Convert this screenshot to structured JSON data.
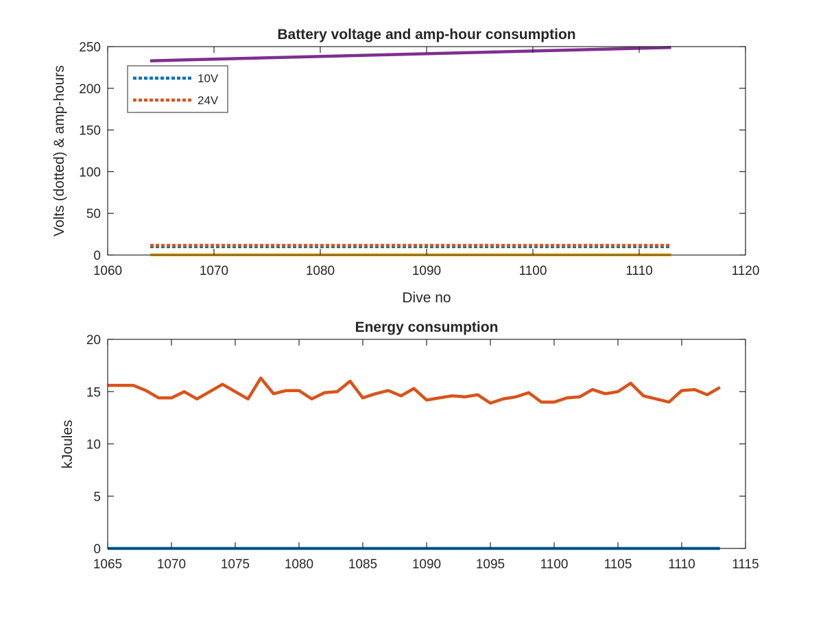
{
  "colors": {
    "blue": "#0072bd",
    "orange": "#d95319",
    "yellow": "#edb120",
    "purple": "#7e2f8e",
    "axis": "#262626"
  },
  "chart_data": [
    {
      "type": "line",
      "title": "Battery voltage and amp-hour consumption",
      "xlabel": "Dive no",
      "ylabel": "Volts (dotted) & amp-hours",
      "xlim": [
        1060,
        1120
      ],
      "ylim": [
        0,
        250
      ],
      "xticks": [
        1060,
        1070,
        1080,
        1090,
        1100,
        1110,
        1120
      ],
      "yticks": [
        0,
        50,
        100,
        150,
        200,
        250
      ],
      "grid": false,
      "legend": "top-left",
      "series": [
        {
          "name": "10V",
          "style": "dotted",
          "color": "blue",
          "x": [
            1064,
            1113
          ],
          "values": [
            10,
            10
          ],
          "in_legend": true
        },
        {
          "name": "24V",
          "style": "dotted",
          "color": "orange",
          "x": [
            1064,
            1113
          ],
          "values": [
            11.5,
            11.5
          ],
          "in_legend": true
        },
        {
          "name": "",
          "style": "solid",
          "color": "yellow",
          "x": [
            1064,
            1113
          ],
          "values": [
            0.3,
            0.3
          ],
          "in_legend": false
        },
        {
          "name": "",
          "style": "solid",
          "color": "purple",
          "x": [
            1064,
            1113
          ],
          "values": [
            233,
            249
          ],
          "in_legend": false
        }
      ]
    },
    {
      "type": "line",
      "title": "Energy consumption",
      "xlabel": "",
      "ylabel": "kJoules",
      "xlim": [
        1065,
        1115
      ],
      "ylim": [
        0,
        20
      ],
      "xticks": [
        1065,
        1070,
        1075,
        1080,
        1085,
        1090,
        1095,
        1100,
        1105,
        1110,
        1115
      ],
      "yticks": [
        0,
        5,
        10,
        15,
        20
      ],
      "grid": false,
      "legend": "none",
      "series": [
        {
          "name": "",
          "style": "solid",
          "color": "blue",
          "x": [
            1065,
            1113
          ],
          "values": [
            0,
            0
          ]
        },
        {
          "name": "",
          "style": "solid",
          "color": "orange",
          "x": [
            1065,
            1066,
            1067,
            1068,
            1069,
            1070,
            1071,
            1072,
            1073,
            1074,
            1075,
            1076,
            1077,
            1078,
            1079,
            1080,
            1081,
            1082,
            1083,
            1084,
            1085,
            1086,
            1087,
            1088,
            1089,
            1090,
            1091,
            1092,
            1093,
            1094,
            1095,
            1096,
            1097,
            1098,
            1099,
            1100,
            1101,
            1102,
            1103,
            1104,
            1105,
            1106,
            1107,
            1108,
            1109,
            1110,
            1111,
            1112,
            1113
          ],
          "values": [
            15.6,
            15.6,
            15.6,
            15.1,
            14.4,
            14.4,
            15.0,
            14.3,
            15.0,
            15.7,
            15.0,
            14.3,
            16.3,
            14.8,
            15.1,
            15.1,
            14.3,
            14.9,
            15.0,
            16.0,
            14.4,
            14.8,
            15.1,
            14.6,
            15.3,
            14.2,
            14.4,
            14.6,
            14.5,
            14.7,
            13.9,
            14.3,
            14.5,
            14.9,
            14.0,
            14.0,
            14.4,
            14.5,
            15.2,
            14.8,
            15.0,
            15.8,
            14.6,
            14.3,
            14.0,
            15.1,
            15.2,
            14.7,
            15.4
          ]
        }
      ]
    }
  ]
}
